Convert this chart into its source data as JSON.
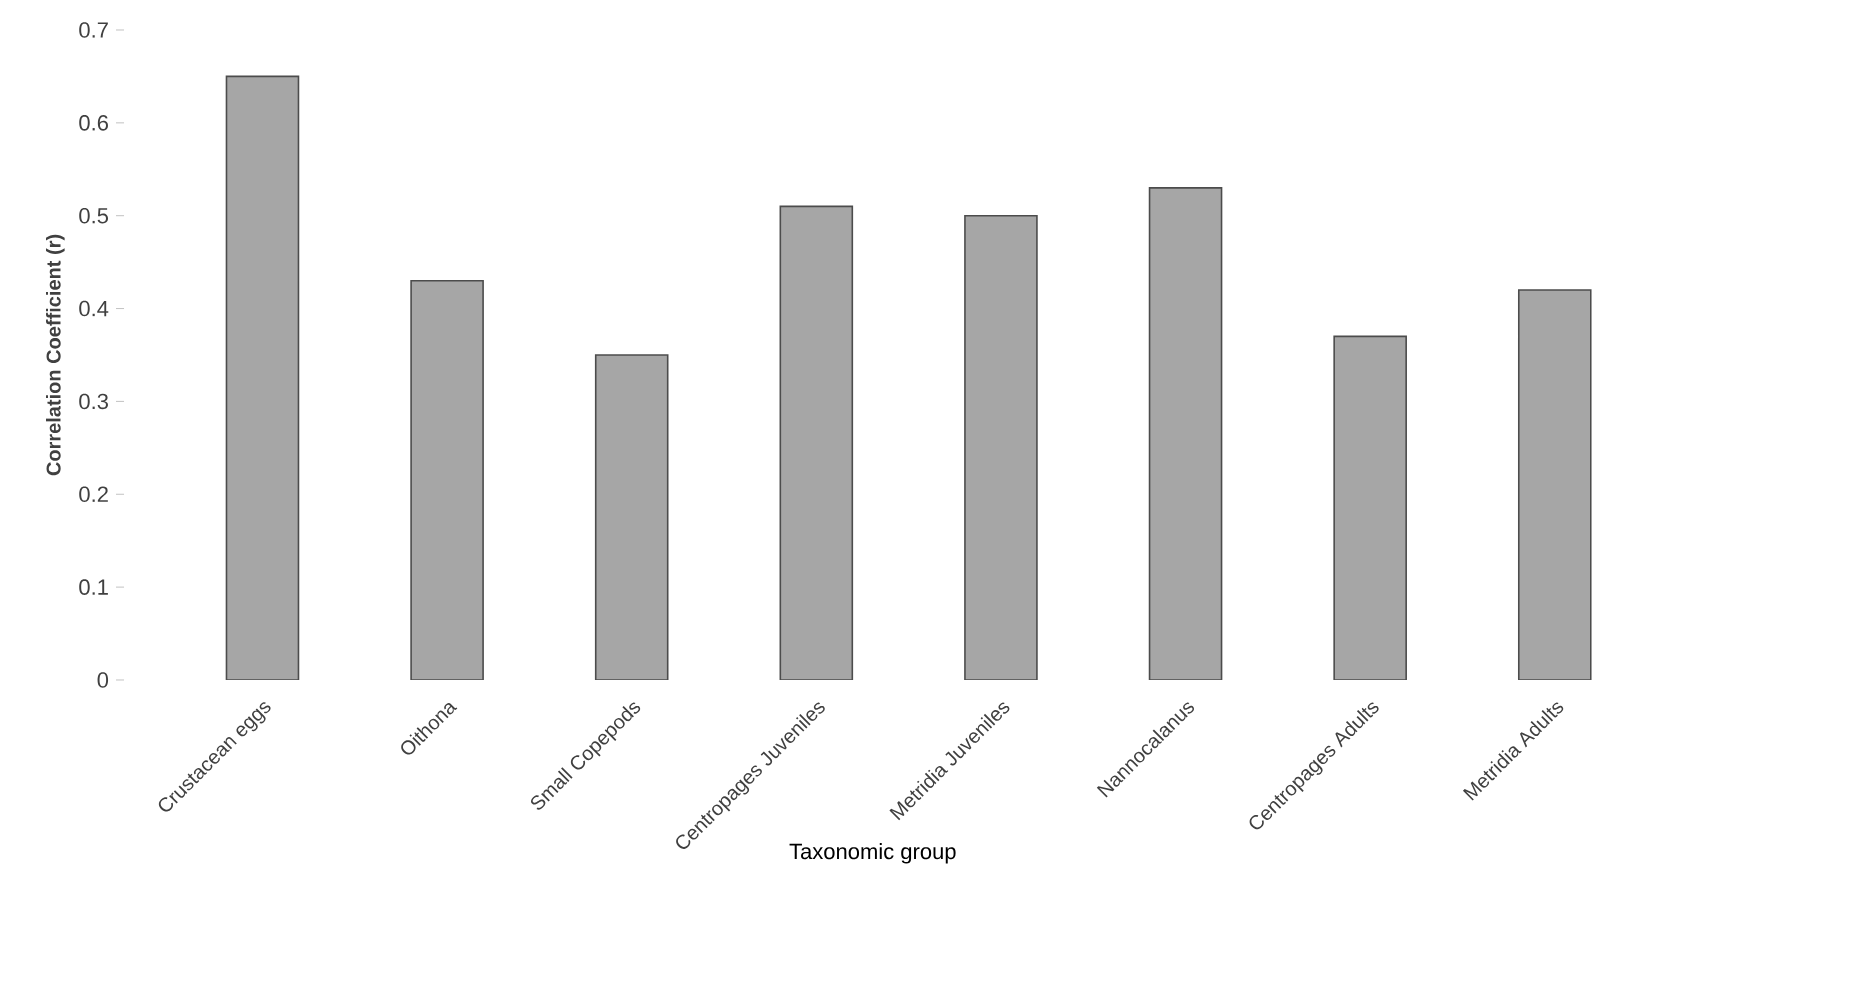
{
  "chart_data": {
    "type": "bar",
    "xlabel": "Taxonomic group",
    "ylabel": "Correlation Coefficient (r)",
    "categories": [
      "Crustacean eggs",
      "Oithona",
      "Small Copepods",
      "Centropages Juveniles",
      "Metridia Juveniles",
      "Nannocalanus",
      "Centropages Adults",
      "Metridia Adults"
    ],
    "values": [
      0.65,
      0.43,
      0.35,
      0.51,
      0.5,
      0.53,
      0.37,
      0.42
    ],
    "color": "#a6a6a6",
    "ylim": [
      0,
      0.7
    ],
    "yticks": [
      0,
      0.1,
      0.2,
      0.3,
      0.4,
      0.5,
      0.6,
      0.7
    ],
    "grid": false
  }
}
